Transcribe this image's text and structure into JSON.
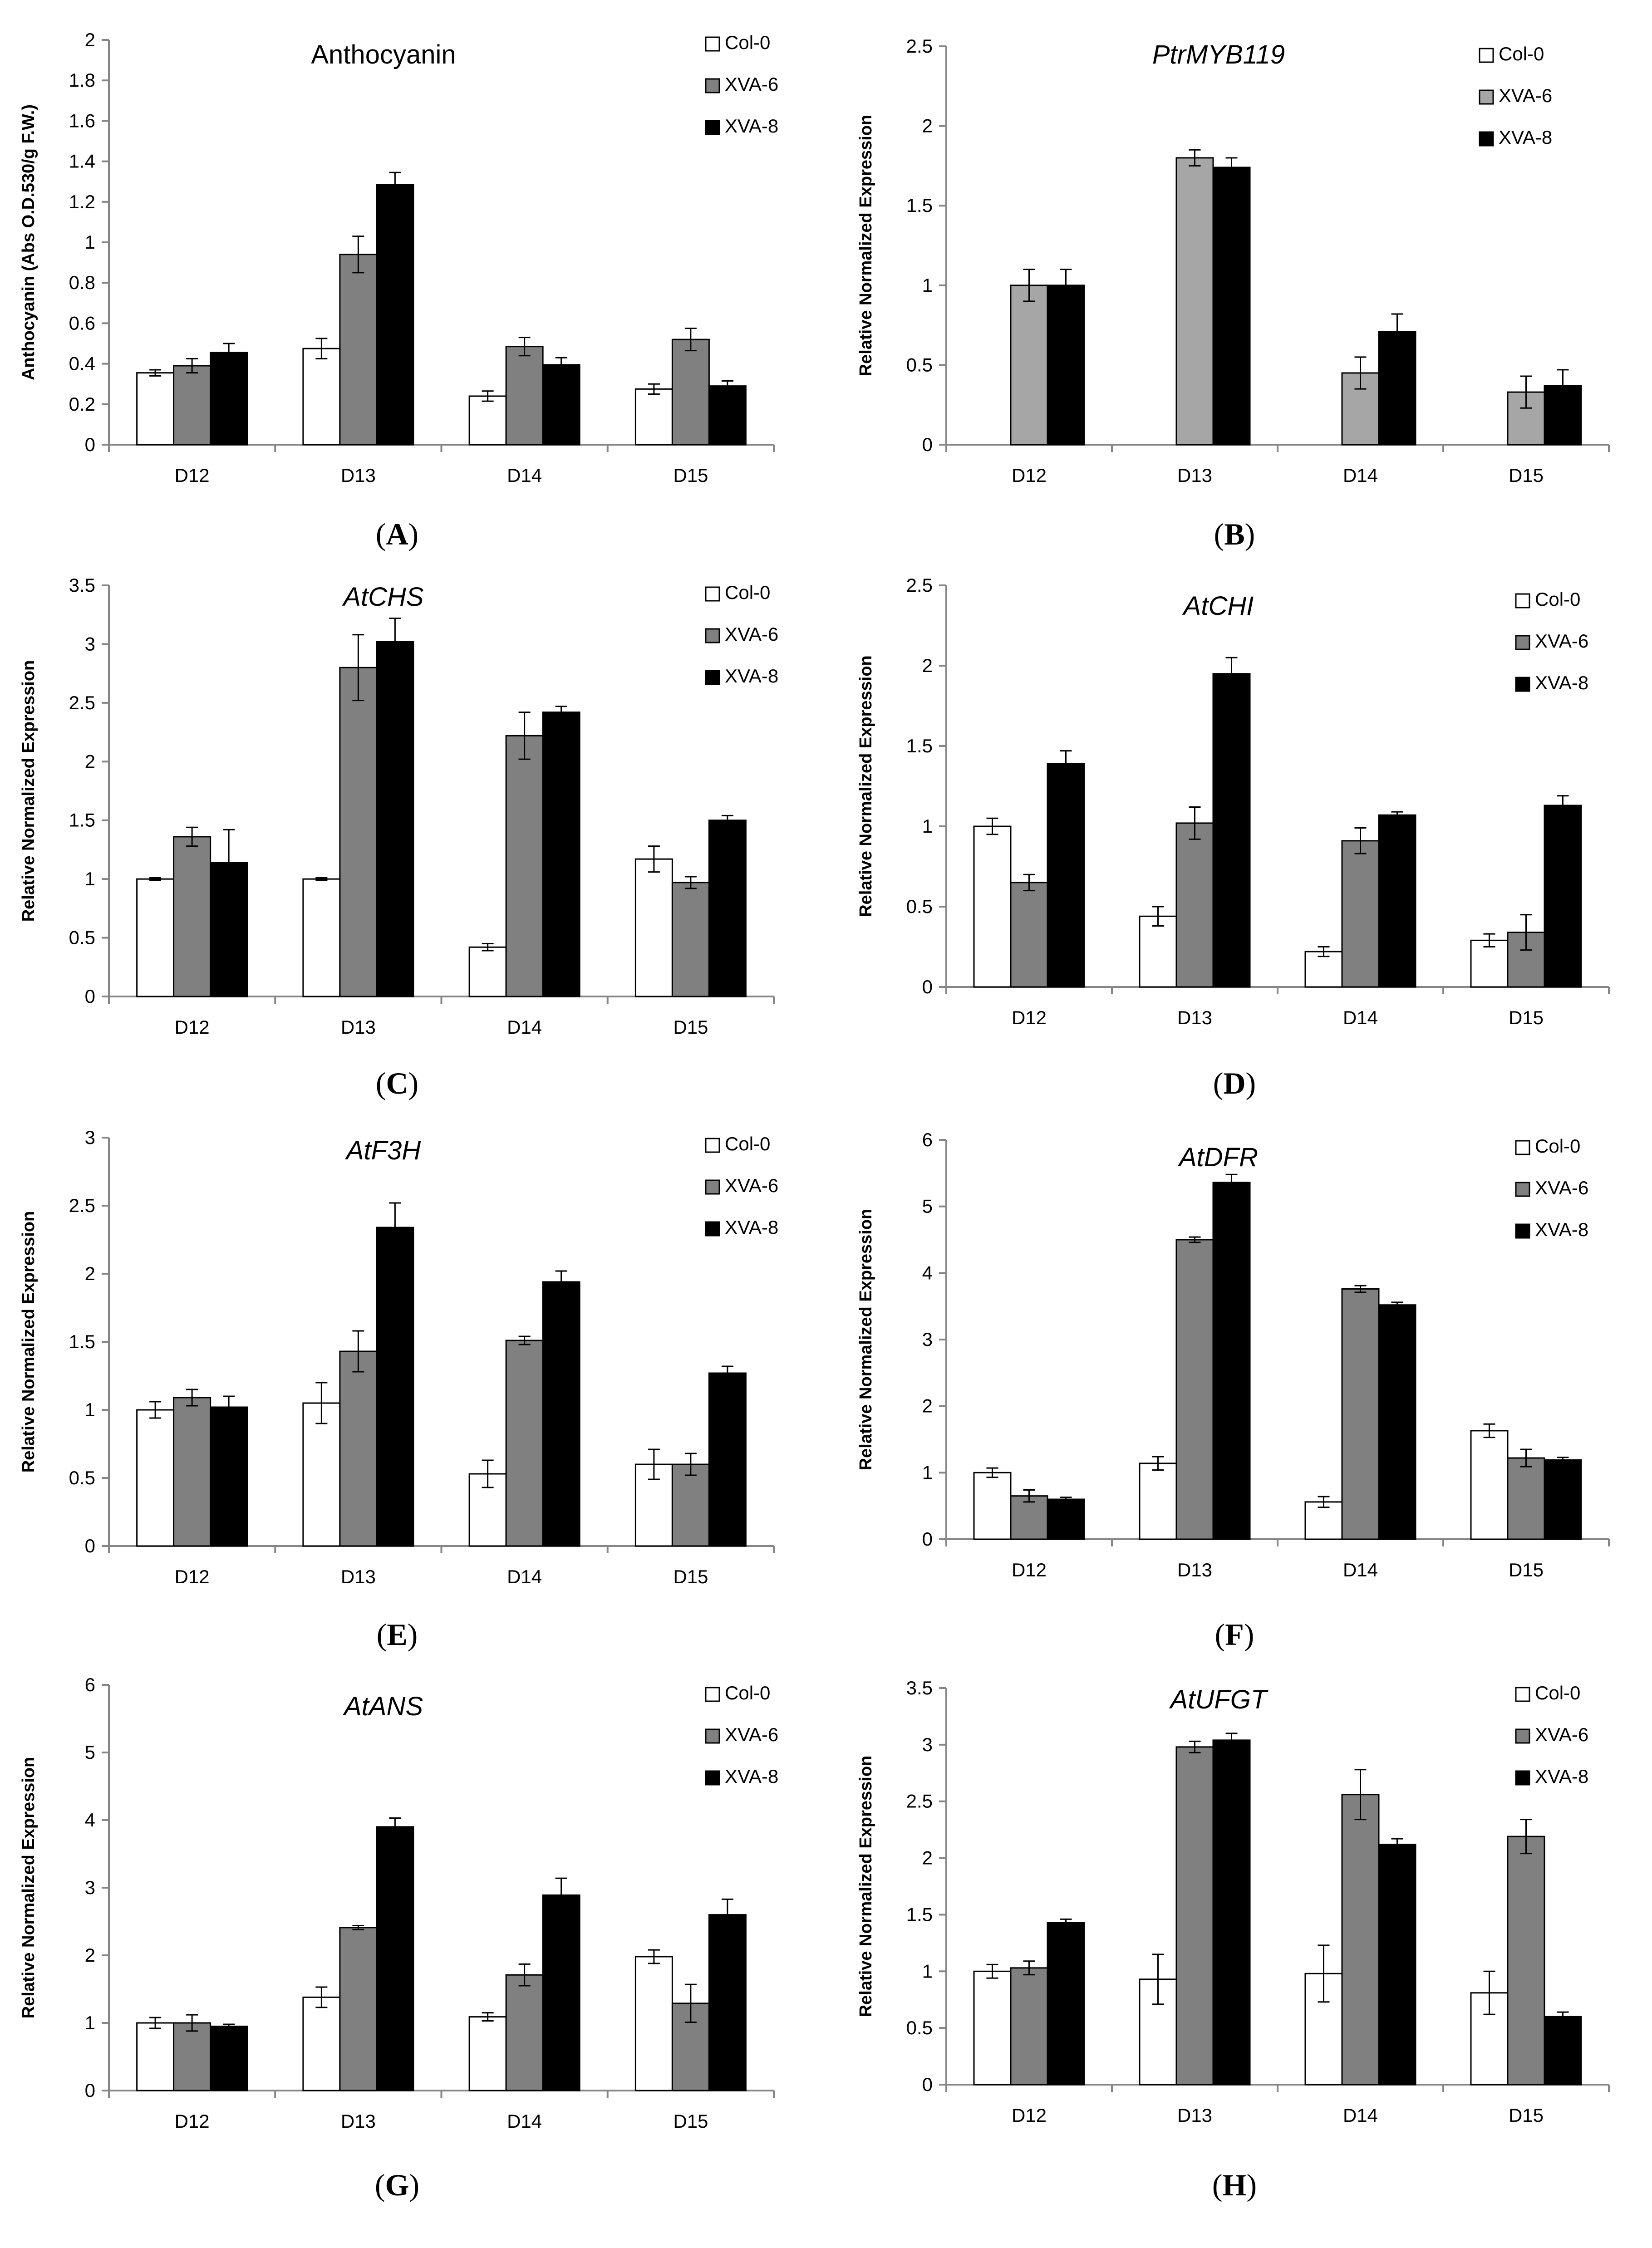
{
  "figure": {
    "categories": [
      "D12",
      "D13",
      "D14",
      "D15"
    ],
    "colors": {
      "Col-0": "#ffffff",
      "XVA-6": "#808080",
      "XVA-6-light": "#a6a6a6",
      "XVA-8": "#000000",
      "axis": "#868686"
    }
  },
  "chart_data": [
    {
      "panel": "A",
      "type": "bar",
      "title": "Anthocyanin",
      "title_italic": false,
      "ylabel": "Anthocyanin (Abs O.D.530/g F.W.)",
      "ylim": [
        0,
        2
      ],
      "ystep": 0.2,
      "yticks": [
        "0",
        "0.2",
        "0.4",
        "0.6",
        "0.8",
        "1",
        "1.2",
        "1.4",
        "1.6",
        "1.8",
        "2"
      ],
      "categories": [
        "D12",
        "D13",
        "D14",
        "D15"
      ],
      "series": [
        {
          "name": "Col-0",
          "color": "#ffffff",
          "values": [
            0.355,
            0.475,
            0.24,
            0.275
          ],
          "errors": [
            0.015,
            0.05,
            0.025,
            0.025
          ]
        },
        {
          "name": "XVA-6",
          "color": "#808080",
          "values": [
            0.39,
            0.94,
            0.485,
            0.52
          ],
          "errors": [
            0.035,
            0.09,
            0.045,
            0.055
          ]
        },
        {
          "name": "XVA-8",
          "color": "#000000",
          "values": [
            0.455,
            1.285,
            0.395,
            0.29
          ],
          "errors": [
            0.045,
            0.06,
            0.035,
            0.025
          ]
        }
      ]
    },
    {
      "panel": "B",
      "type": "bar",
      "title": "PtrMYB119",
      "title_italic": true,
      "ylabel": "Relative Normalized Expression",
      "ylim": [
        0,
        2.5
      ],
      "ystep": 0.5,
      "yticks": [
        "0",
        "0.5",
        "1",
        "1.5",
        "2",
        "2.5"
      ],
      "categories": [
        "D12",
        "D13",
        "D14",
        "D15"
      ],
      "series": [
        {
          "name": "Col-0",
          "color": "#ffffff",
          "values": [
            0,
            0,
            0,
            0
          ],
          "errors": [
            0,
            0,
            0,
            0
          ]
        },
        {
          "name": "XVA-6",
          "color": "#a6a6a6",
          "values": [
            1.0,
            1.8,
            0.45,
            0.33
          ],
          "errors": [
            0.1,
            0.05,
            0.1,
            0.1
          ]
        },
        {
          "name": "XVA-8",
          "color": "#000000",
          "values": [
            1.0,
            1.74,
            0.71,
            0.37
          ],
          "errors": [
            0.1,
            0.06,
            0.11,
            0.1
          ]
        }
      ]
    },
    {
      "panel": "C",
      "type": "bar",
      "title": "AtCHS",
      "title_italic": true,
      "ylabel": "Relative Normalized Expression",
      "ylim": [
        0,
        3.5
      ],
      "ystep": 0.5,
      "yticks": [
        "0",
        "0.5",
        "1",
        "1.5",
        "2",
        "2.5",
        "3",
        "3.5"
      ],
      "categories": [
        "D12",
        "D13",
        "D14",
        "D15"
      ],
      "series": [
        {
          "name": "Col-0",
          "color": "#ffffff",
          "values": [
            1.0,
            1.0,
            0.42,
            1.17
          ],
          "errors": [
            0.01,
            0.01,
            0.03,
            0.11
          ]
        },
        {
          "name": "XVA-6",
          "color": "#808080",
          "values": [
            1.36,
            2.8,
            2.22,
            0.97
          ],
          "errors": [
            0.08,
            0.28,
            0.2,
            0.05
          ]
        },
        {
          "name": "XVA-8",
          "color": "#000000",
          "values": [
            1.14,
            3.02,
            2.42,
            1.5
          ],
          "errors": [
            0.28,
            0.2,
            0.05,
            0.04
          ]
        }
      ]
    },
    {
      "panel": "D",
      "type": "bar",
      "title": "AtCHI",
      "title_italic": true,
      "ylabel": "Relative Normalized Expression",
      "ylim": [
        0,
        2.5
      ],
      "ystep": 0.5,
      "yticks": [
        "0",
        "0.5",
        "1",
        "1.5",
        "2",
        "2.5"
      ],
      "categories": [
        "D12",
        "D13",
        "D14",
        "D15"
      ],
      "series": [
        {
          "name": "Col-0",
          "color": "#ffffff",
          "values": [
            1.0,
            0.44,
            0.22,
            0.29
          ],
          "errors": [
            0.05,
            0.06,
            0.03,
            0.04
          ]
        },
        {
          "name": "XVA-6",
          "color": "#808080",
          "values": [
            0.65,
            1.02,
            0.91,
            0.34
          ],
          "errors": [
            0.05,
            0.1,
            0.08,
            0.11
          ]
        },
        {
          "name": "XVA-8",
          "color": "#000000",
          "values": [
            1.39,
            1.95,
            1.07,
            1.13
          ],
          "errors": [
            0.08,
            0.1,
            0.02,
            0.06
          ]
        }
      ]
    },
    {
      "panel": "E",
      "type": "bar",
      "title": "AtF3H",
      "title_italic": true,
      "ylabel": "Relative Normalized Expression",
      "ylim": [
        0,
        3
      ],
      "ystep": 0.5,
      "yticks": [
        "0",
        "0.5",
        "1",
        "1.5",
        "2",
        "2.5",
        "3"
      ],
      "categories": [
        "D12",
        "D13",
        "D14",
        "D15"
      ],
      "series": [
        {
          "name": "Col-0",
          "color": "#ffffff",
          "values": [
            1.0,
            1.05,
            0.53,
            0.6
          ],
          "errors": [
            0.06,
            0.15,
            0.1,
            0.11
          ]
        },
        {
          "name": "XVA-6",
          "color": "#808080",
          "values": [
            1.09,
            1.43,
            1.51,
            0.6
          ],
          "errors": [
            0.06,
            0.15,
            0.03,
            0.08
          ]
        },
        {
          "name": "XVA-8",
          "color": "#000000",
          "values": [
            1.02,
            2.34,
            1.94,
            1.27
          ],
          "errors": [
            0.08,
            0.18,
            0.08,
            0.05
          ]
        }
      ]
    },
    {
      "panel": "F",
      "type": "bar",
      "title": "AtDFR",
      "title_italic": true,
      "ylabel": "Relative Normalized Expression",
      "ylim": [
        0,
        6
      ],
      "ystep": 1,
      "yticks": [
        "0",
        "1",
        "2",
        "3",
        "4",
        "5",
        "6"
      ],
      "categories": [
        "D12",
        "D13",
        "D14",
        "D15"
      ],
      "series": [
        {
          "name": "Col-0",
          "color": "#ffffff",
          "values": [
            1.0,
            1.14,
            0.56,
            1.63
          ],
          "errors": [
            0.07,
            0.1,
            0.08,
            0.1
          ]
        },
        {
          "name": "XVA-6",
          "color": "#808080",
          "values": [
            0.65,
            4.5,
            3.76,
            1.22
          ],
          "errors": [
            0.09,
            0.04,
            0.05,
            0.13
          ]
        },
        {
          "name": "XVA-8",
          "color": "#000000",
          "values": [
            0.6,
            5.36,
            3.52,
            1.19
          ],
          "errors": [
            0.03,
            0.12,
            0.04,
            0.04
          ]
        }
      ]
    },
    {
      "panel": "G",
      "type": "bar",
      "title": "AtANS",
      "title_italic": true,
      "ylabel": "Relative Normalized Expression",
      "ylim": [
        0,
        6
      ],
      "ystep": 1,
      "yticks": [
        "0",
        "1",
        "2",
        "3",
        "4",
        "5",
        "6"
      ],
      "categories": [
        "D12",
        "D13",
        "D14",
        "D15"
      ],
      "series": [
        {
          "name": "Col-0",
          "color": "#ffffff",
          "values": [
            1.0,
            1.38,
            1.09,
            1.98
          ],
          "errors": [
            0.08,
            0.15,
            0.06,
            0.1
          ]
        },
        {
          "name": "XVA-6",
          "color": "#808080",
          "values": [
            1.0,
            2.41,
            1.71,
            1.29
          ],
          "errors": [
            0.12,
            0.03,
            0.16,
            0.28
          ]
        },
        {
          "name": "XVA-8",
          "color": "#000000",
          "values": [
            0.95,
            3.9,
            2.89,
            2.6
          ],
          "errors": [
            0.03,
            0.13,
            0.25,
            0.23
          ]
        }
      ]
    },
    {
      "panel": "H",
      "type": "bar",
      "title": "AtUFGT",
      "title_italic": true,
      "ylabel": "Relative Normalized Expression",
      "ylim": [
        0,
        3.5
      ],
      "ystep": 0.5,
      "yticks": [
        "0",
        "0.5",
        "1",
        "1.5",
        "2",
        "2.5",
        "3",
        "3.5"
      ],
      "categories": [
        "D12",
        "D13",
        "D14",
        "D15"
      ],
      "series": [
        {
          "name": "Col-0",
          "color": "#ffffff",
          "values": [
            1.0,
            0.93,
            0.98,
            0.81
          ],
          "errors": [
            0.06,
            0.22,
            0.25,
            0.19
          ]
        },
        {
          "name": "XVA-6",
          "color": "#808080",
          "values": [
            1.03,
            2.98,
            2.56,
            2.19
          ],
          "errors": [
            0.06,
            0.05,
            0.22,
            0.15
          ]
        },
        {
          "name": "XVA-8",
          "color": "#000000",
          "values": [
            1.43,
            3.04,
            2.12,
            0.6
          ],
          "errors": [
            0.03,
            0.06,
            0.05,
            0.04
          ]
        }
      ]
    }
  ]
}
